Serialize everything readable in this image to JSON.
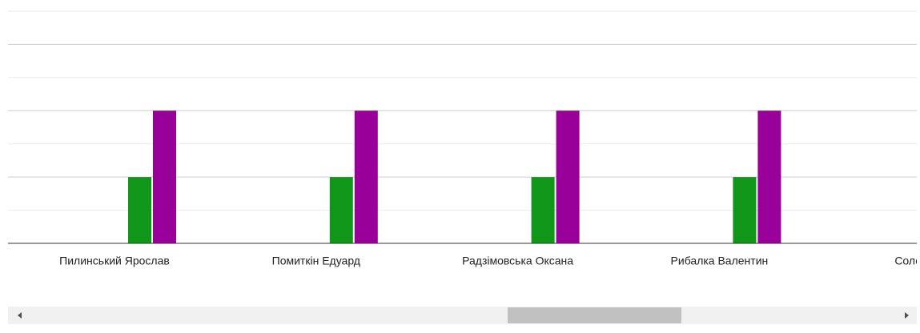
{
  "chart_data": {
    "type": "bar",
    "categories": [
      "Пилинський Ярослав",
      "Помиткін Едуард",
      "Радзімовська Оксана",
      "Рибалка Валентин",
      "Соломаха"
    ],
    "series": [
      {
        "color": "#109618",
        "values": [
          1,
          1,
          1,
          1,
          null
        ]
      },
      {
        "color": "#990099",
        "values": [
          2,
          2,
          2,
          2,
          null
        ]
      }
    ],
    "ylim": [
      0,
      3.5
    ],
    "yticks": [
      0,
      0.5,
      1,
      1.5,
      2,
      2.5,
      3,
      3.5
    ],
    "grid": true
  }
}
